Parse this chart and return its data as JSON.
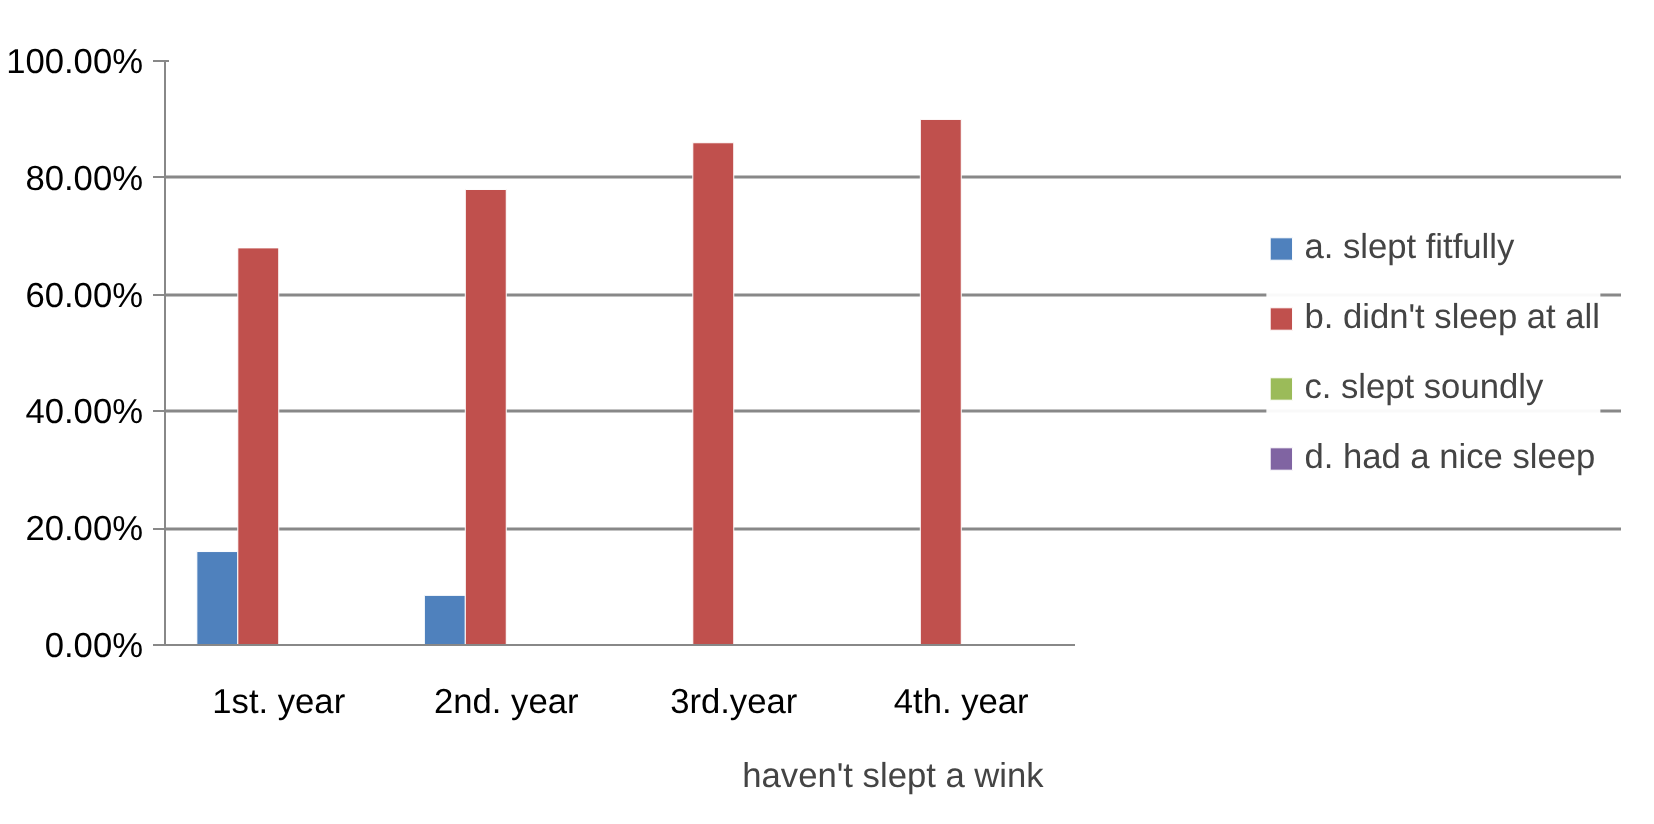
{
  "chart_data": {
    "type": "bar",
    "xlabel": "haven't slept a wink",
    "categories": [
      "1st. year",
      "2nd. year",
      "3rd.year",
      "4th. year"
    ],
    "series": [
      {
        "name": "a. slept fitfully",
        "color": "#4f81bd",
        "values": [
          16,
          8.5,
          null,
          null
        ]
      },
      {
        "name": "b. didn't sleep at all",
        "color": "#c0504d",
        "values": [
          68,
          78,
          86,
          90
        ]
      },
      {
        "name": "c. slept soundly",
        "color": "#9bbb59",
        "values": [
          null,
          null,
          null,
          null
        ]
      },
      {
        "name": "d. had a nice sleep",
        "color": "#8064a2",
        "values": [
          null,
          null,
          null,
          null
        ]
      }
    ],
    "ylim": [
      0,
      100
    ],
    "yticks": [
      {
        "value": 0,
        "label": "0.00%"
      },
      {
        "value": 20,
        "label": "20.00%"
      },
      {
        "value": 40,
        "label": "40.00%"
      },
      {
        "value": 60,
        "label": "60.00%"
      },
      {
        "value": 80,
        "label": "80.00%"
      },
      {
        "value": 100,
        "label": "100.00%"
      }
    ],
    "grid": "y",
    "legend": "right"
  }
}
